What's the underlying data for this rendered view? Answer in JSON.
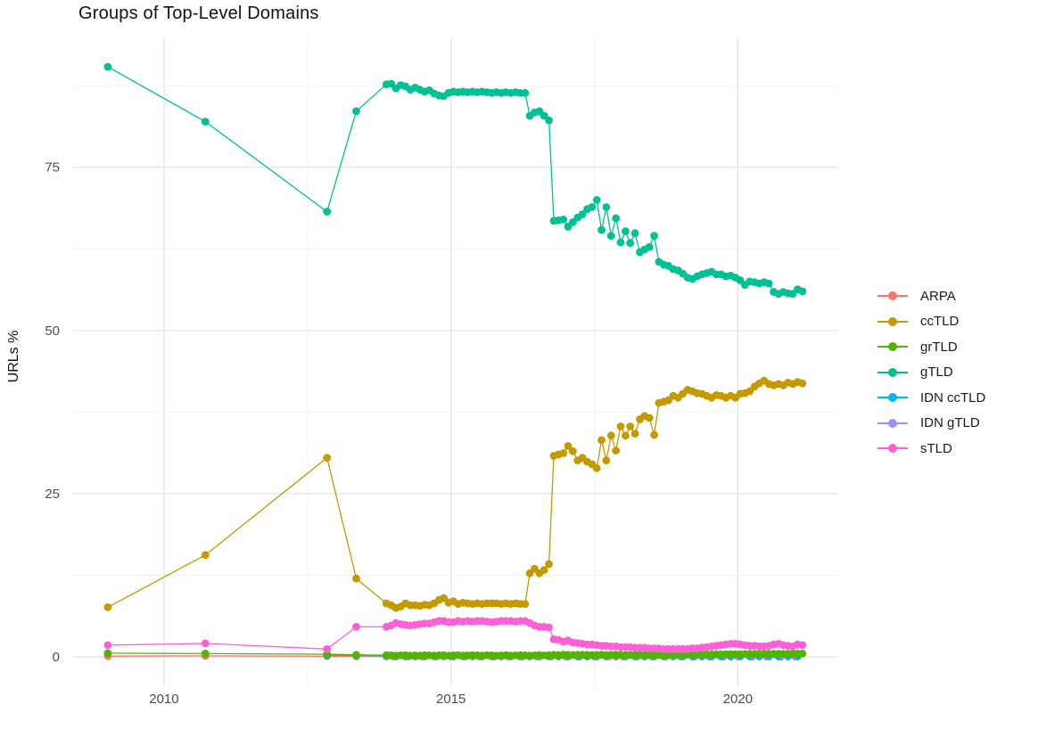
{
  "header": {
    "title": "Groups of Top-Level Domains"
  },
  "colors": {
    "background": "#FFFFFF",
    "grid_major": "#E5E5E5",
    "grid_minor": "#F2F2F2",
    "tick_label": "#4D4D4D",
    "title_text": "#111111"
  },
  "legend": {
    "order": [
      "ARPA",
      "ccTLD",
      "grTLD",
      "gTLD",
      "IDN ccTLD",
      "IDN gTLD",
      "sTLD"
    ]
  },
  "chart_data": {
    "type": "scatter",
    "title": "Groups of Top-Level Domains",
    "xlabel": "",
    "ylabel": "URLs %",
    "xlim": [
      2008.4,
      2021.75
    ],
    "ylim": [
      -4.5,
      94.9
    ],
    "x_axis": {
      "major": [
        2010,
        2015,
        2020
      ],
      "minor": [
        2012.5,
        2017.5
      ],
      "tick_labels": [
        "2010",
        "2015",
        "2020"
      ]
    },
    "y_axis": {
      "major": [
        0,
        25,
        50,
        75
      ],
      "minor": [
        12.5,
        37.5,
        62.5,
        87.5
      ],
      "tick_labels": [
        "0",
        "25",
        "50",
        "75"
      ]
    },
    "grid": true,
    "legend_position": "right",
    "series": [
      {
        "name": "ARPA",
        "color": "#F8766D",
        "points": [
          [
            2009.02,
            0.12
          ],
          [
            2010.72,
            0.15
          ],
          [
            2012.84,
            0.1
          ],
          [
            2013.35,
            0.07
          ]
        ],
        "run": {
          "x0": 2014.0,
          "step": 0.25,
          "ys": [
            0.04,
            0.04,
            0.04,
            0.04,
            0.04,
            0.04,
            0.04,
            0.04,
            0.04,
            0.04,
            0.04,
            0.04,
            0.04,
            0.04,
            0.04,
            0.04,
            0.04,
            0.04,
            0.04,
            0.04,
            0.04,
            0.04,
            0.04,
            0.04,
            0.04,
            0.04,
            0.04,
            0.04,
            0.04
          ]
        }
      },
      {
        "name": "IDN gTLD",
        "color": "#A58AFF",
        "points": [],
        "run": {
          "x0": 2013.875,
          "step": 0.166667,
          "ys": [
            0.05,
            0.05,
            0.05,
            0.05,
            0.05,
            0.05,
            0.05,
            0.05,
            0.05,
            0.05,
            0.05,
            0.05,
            0.05,
            0.05,
            0.05,
            0.05,
            0.05,
            0.05,
            0.05,
            0.05,
            0.05,
            0.05,
            0.05,
            0.05,
            0.05,
            0.05,
            0.05,
            0.05,
            0.05,
            0.05,
            0.05,
            0.05,
            0.05,
            0.05,
            0.05,
            0.05,
            0.05,
            0.05,
            0.05,
            0.05,
            0.05,
            0.05,
            0.05,
            0.05
          ]
        }
      },
      {
        "name": "IDN ccTLD",
        "color": "#00B6EB",
        "points": [
          [
            2012.84,
            0.25
          ],
          [
            2013.35,
            0.2
          ]
        ],
        "run": {
          "x0": 2013.875,
          "step": 0.166667,
          "ys": [
            0.15,
            0.15,
            0.15,
            0.15,
            0.15,
            0.15,
            0.15,
            0.15,
            0.15,
            0.15,
            0.15,
            0.15,
            0.15,
            0.12,
            0.12,
            0.12,
            0.12,
            0.12,
            0.12,
            0.12,
            0.12,
            0.12,
            0.12,
            0.12,
            0.12,
            0.12,
            0.12,
            0.12,
            0.12,
            0.12,
            0.12,
            0.1,
            0.1,
            0.1,
            0.1,
            0.1,
            0.1,
            0.1,
            0.1,
            0.1,
            0.1,
            0.1,
            0.1,
            0.1
          ]
        }
      },
      {
        "name": "grTLD",
        "color": "#53B400",
        "points": [
          [
            2009.02,
            0.55
          ],
          [
            2010.72,
            0.5
          ],
          [
            2012.84,
            0.4
          ],
          [
            2013.35,
            0.3
          ]
        ],
        "run": {
          "x0": 2013.875,
          "step": 0.083333,
          "ys": [
            0.25,
            0.22,
            0.2,
            0.22,
            0.25,
            0.2,
            0.22,
            0.2,
            0.25,
            0.22,
            0.2,
            0.22,
            0.25,
            0.2,
            0.22,
            0.25,
            0.2,
            0.22,
            0.25,
            0.22,
            0.2,
            0.25,
            0.22,
            0.2,
            0.22,
            0.25,
            0.2,
            0.22,
            0.25,
            0.22,
            0.2,
            0.22,
            0.25,
            0.22,
            0.25,
            0.3,
            0.28,
            0.32,
            0.3,
            0.28,
            0.3,
            0.32,
            0.3,
            0.28,
            0.3,
            0.32,
            0.28,
            0.3,
            0.32,
            0.3,
            0.28,
            0.3,
            0.32,
            0.3,
            0.28,
            0.32,
            0.3,
            0.28,
            0.3,
            0.32,
            0.3,
            0.35,
            0.35,
            0.35,
            0.36,
            0.36,
            0.37,
            0.38,
            0.38,
            0.39,
            0.4,
            0.4,
            0.41,
            0.42,
            0.42,
            0.43,
            0.44,
            0.44,
            0.45,
            0.45,
            0.46,
            0.46,
            0.47,
            0.47,
            0.48,
            0.48,
            0.49,
            0.5
          ]
        }
      },
      {
        "name": "ccTLD",
        "color": "#C49A00",
        "points": [
          [
            2009.02,
            7.6
          ],
          [
            2010.72,
            15.6
          ],
          [
            2012.84,
            30.5
          ],
          [
            2013.35,
            12.0
          ]
        ],
        "run": {
          "x0": 2013.875,
          "step": 0.083333,
          "ys": [
            8.2,
            7.9,
            7.5,
            7.7,
            8.2,
            7.9,
            7.9,
            7.8,
            8.0,
            7.9,
            8.2,
            8.7,
            9.0,
            8.3,
            8.5,
            8.1,
            8.3,
            8.2,
            8.1,
            8.2,
            8.1,
            8.2,
            8.2,
            8.2,
            8.1,
            8.2,
            8.1,
            8.2,
            8.1,
            8.1,
            12.8,
            13.5,
            12.8,
            13.3,
            14.2,
            30.8,
            31.0,
            31.2,
            32.3,
            31.5,
            30.1,
            30.5,
            29.9,
            29.5,
            28.9,
            33.2,
            30.1,
            33.9,
            31.6,
            35.3,
            33.9,
            35.3,
            34.2,
            36.4,
            36.9,
            36.6,
            34.0,
            38.9,
            39.1,
            39.3,
            40.0,
            39.7,
            40.3,
            40.9,
            40.7,
            40.4,
            40.3,
            40.0,
            39.7,
            40.1,
            40.0,
            39.7,
            40.0,
            39.7,
            40.3,
            40.4,
            40.7,
            41.4,
            41.9,
            42.3,
            41.8,
            41.6,
            41.8,
            41.6,
            42.0,
            41.8,
            42.1,
            41.9
          ]
        }
      },
      {
        "name": "gTLD",
        "color": "#00C094",
        "points": [
          [
            2009.02,
            90.4
          ],
          [
            2010.72,
            82.0
          ],
          [
            2012.84,
            68.2
          ],
          [
            2013.35,
            83.6
          ]
        ],
        "run": {
          "x0": 2013.875,
          "step": 0.083333,
          "ys": [
            87.7,
            87.8,
            87.1,
            87.6,
            87.4,
            86.9,
            87.2,
            86.9,
            86.6,
            86.8,
            86.3,
            86.0,
            85.9,
            86.4,
            86.6,
            86.5,
            86.6,
            86.5,
            86.6,
            86.5,
            86.6,
            86.5,
            86.4,
            86.5,
            86.4,
            86.5,
            86.4,
            86.5,
            86.4,
            86.4,
            82.9,
            83.4,
            83.6,
            82.9,
            82.2,
            66.8,
            66.9,
            67.0,
            65.9,
            66.6,
            67.3,
            67.8,
            68.6,
            68.9,
            70.0,
            65.4,
            68.9,
            64.5,
            67.2,
            63.5,
            65.2,
            63.4,
            64.9,
            62.0,
            62.4,
            62.8,
            64.5,
            60.5,
            60.1,
            59.9,
            59.4,
            59.2,
            58.7,
            58.1,
            57.9,
            58.3,
            58.6,
            58.8,
            59.0,
            58.6,
            58.6,
            58.3,
            58.4,
            58.1,
            57.7,
            57.0,
            57.5,
            57.4,
            57.2,
            57.4,
            57.2,
            55.9,
            55.6,
            55.9,
            55.7,
            55.6,
            56.3,
            56.0
          ]
        }
      },
      {
        "name": "sTLD",
        "color": "#FB61D7",
        "points": [
          [
            2009.02,
            1.8
          ],
          [
            2010.72,
            2.05
          ],
          [
            2012.84,
            1.2
          ],
          [
            2013.35,
            4.6
          ]
        ],
        "run": {
          "x0": 2013.875,
          "step": 0.083333,
          "ys": [
            4.6,
            4.8,
            5.2,
            5.0,
            4.9,
            4.8,
            4.9,
            5.0,
            5.1,
            5.1,
            5.3,
            5.5,
            5.5,
            5.3,
            5.3,
            5.5,
            5.4,
            5.5,
            5.4,
            5.5,
            5.5,
            5.4,
            5.3,
            5.4,
            5.5,
            5.5,
            5.5,
            5.4,
            5.5,
            5.5,
            5.2,
            4.8,
            4.6,
            4.6,
            4.5,
            2.7,
            2.6,
            2.3,
            2.5,
            2.2,
            2.1,
            2.0,
            1.9,
            1.9,
            1.8,
            1.7,
            1.7,
            1.6,
            1.6,
            1.5,
            1.5,
            1.5,
            1.4,
            1.4,
            1.4,
            1.3,
            1.3,
            1.3,
            1.2,
            1.2,
            1.2,
            1.2,
            1.2,
            1.2,
            1.3,
            1.3,
            1.4,
            1.5,
            1.6,
            1.7,
            1.8,
            1.9,
            2.0,
            2.0,
            1.9,
            1.8,
            1.7,
            1.7,
            1.6,
            1.6,
            1.7,
            1.9,
            2.0,
            1.8,
            1.7,
            1.6,
            1.9,
            1.8
          ]
        }
      }
    ]
  }
}
